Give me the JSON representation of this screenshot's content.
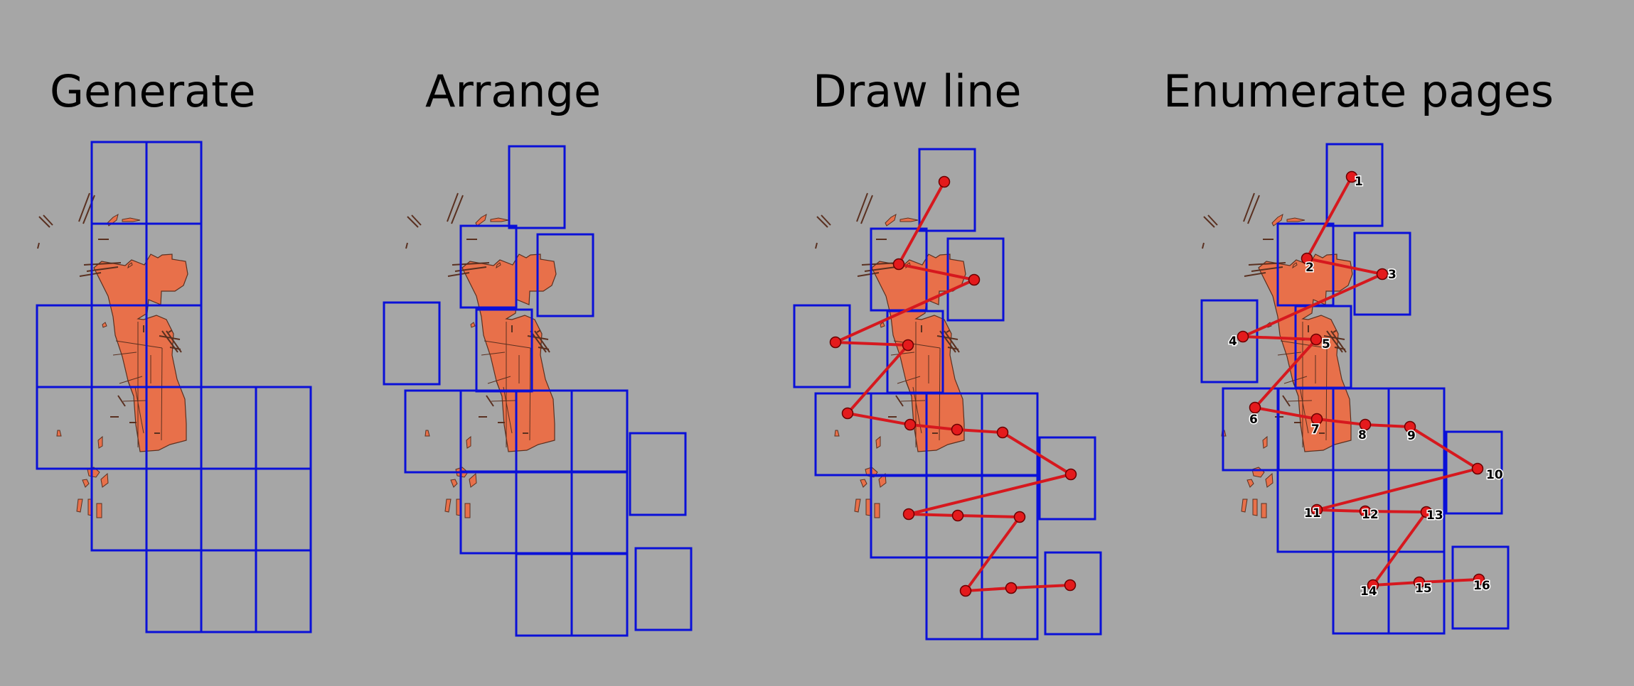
{
  "panels": [
    {
      "title": "Generate"
    },
    {
      "title": "Arrange"
    },
    {
      "title": "Draw line"
    },
    {
      "title": "Enumerate pages",
      "page_labels": [
        "1",
        "2",
        "3",
        "4",
        "5",
        "6",
        "7",
        "8",
        "9",
        "10",
        "11",
        "12",
        "13",
        "14",
        "15",
        "16"
      ]
    }
  ],
  "colors": {
    "background": "#a6a6a6",
    "page_frame": "#0a10d8",
    "feature_fill": "#e8704a",
    "feature_stroke": "#5a3020",
    "path_line": "#d6181e",
    "node_fill": "#e41a1c"
  }
}
